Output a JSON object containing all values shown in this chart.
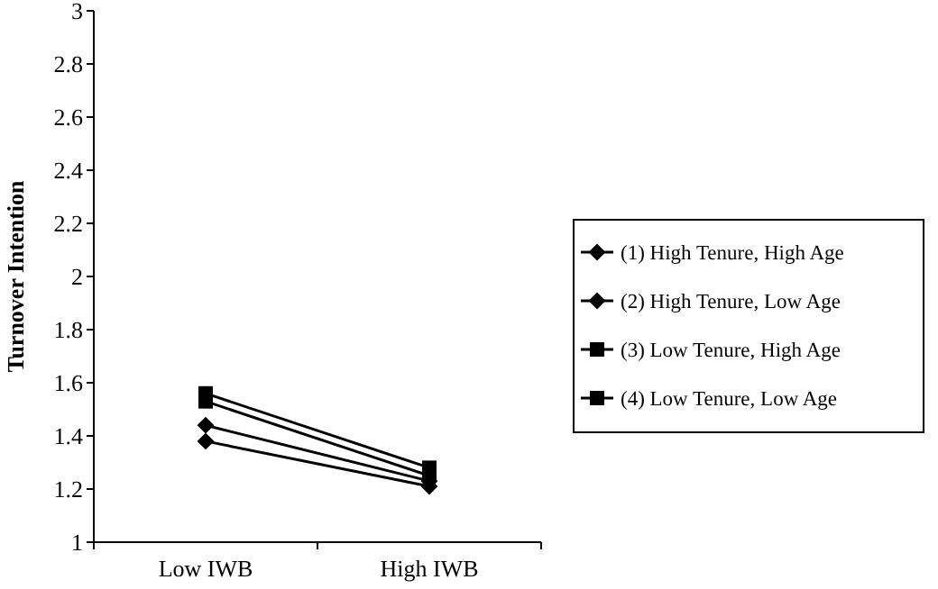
{
  "chart_data": {
    "type": "line",
    "ylabel": "Turnover Intention",
    "categories": [
      "Low IWB",
      "High IWB"
    ],
    "ylim": [
      1,
      3
    ],
    "yticks": [
      1,
      1.2,
      1.4,
      1.6,
      1.8,
      2,
      2.2,
      2.4,
      2.6,
      2.8,
      3
    ],
    "legend": "right",
    "grid": false,
    "series": [
      {
        "name": "(1) High Tenure, High Age",
        "color": "#000000",
        "marker": "diamond",
        "values": [
          1.44,
          1.23
        ]
      },
      {
        "name": "(2) High Tenure, Low Age",
        "color": "#000000",
        "marker": "diamond",
        "values": [
          1.38,
          1.21
        ]
      },
      {
        "name": "(3) Low Tenure, High Age",
        "color": "#000000",
        "marker": "square",
        "values": [
          1.56,
          1.28
        ]
      },
      {
        "name": "(4) Low Tenure, Low Age",
        "color": "#000000",
        "marker": "square",
        "values": [
          1.53,
          1.25
        ]
      }
    ]
  }
}
